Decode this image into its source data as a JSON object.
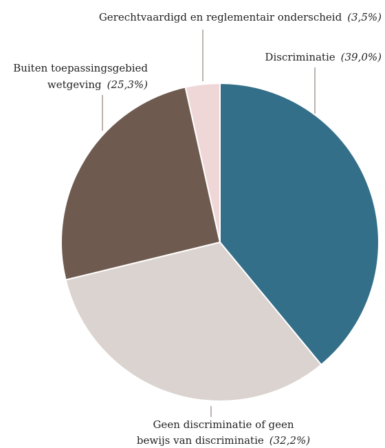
{
  "chart_data": {
    "type": "pie",
    "start_angle_deg": 0,
    "direction": "clockwise",
    "slices": [
      {
        "name": "Discriminatie",
        "value": 39.0,
        "value_label": "(39,0%)",
        "color": "#336f89"
      },
      {
        "name": "Geen discriminatie of geen bewijs van discriminatie",
        "value": 32.2,
        "value_label": "(32,2%)",
        "color": "#dbd3cf"
      },
      {
        "name": "Buiten toepassingsgebied wetgeving",
        "value": 25.3,
        "value_label": "(25,3%)",
        "color": "#6e5a4f"
      },
      {
        "name": "Gerechtvaardigd en reglementair onderscheid",
        "value": 3.5,
        "value_label": "(3,5%)",
        "color": "#efd7d8"
      }
    ]
  }
}
